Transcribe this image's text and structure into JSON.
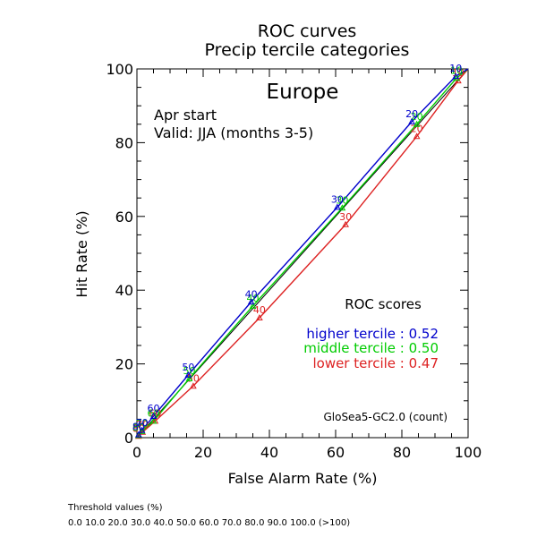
{
  "chart_data": {
    "type": "line",
    "title": "ROC curves",
    "subtitle": "Precip tercile categories",
    "region": "Europe",
    "start_label": "Apr start",
    "valid_label": "Valid: JJA (months 3-5)",
    "xlabel": "False Alarm Rate (%)",
    "ylabel": "Hit Rate (%)",
    "xlim": [
      0,
      100
    ],
    "ylim": [
      0,
      100
    ],
    "x_ticks": [
      "0",
      "20",
      "40",
      "60",
      "80",
      "100"
    ],
    "y_ticks": [
      "0",
      "20",
      "40",
      "60",
      "80",
      "100"
    ],
    "legend_title": "ROC scores",
    "model_label": "GloSea5-GC2.0 (count)",
    "threshold_title": "Threshold values (%)",
    "threshold_values": "0.0 10.0 20.0 30.0 40.0 50.0 60.0 70.0 80.0 90.0 100.0 (>100)",
    "series": [
      {
        "name": "higher tercile",
        "score_text": "higher tercile : 0.52",
        "color": "#0000cc",
        "points": [
          {
            "x": 100,
            "y": 100,
            "label": ""
          },
          {
            "x": 96.3,
            "y": 98.0,
            "label": "10"
          },
          {
            "x": 83.0,
            "y": 85.7,
            "label": "20"
          },
          {
            "x": 60.5,
            "y": 62.5,
            "label": "30"
          },
          {
            "x": 34.5,
            "y": 36.8,
            "label": "40"
          },
          {
            "x": 15.5,
            "y": 17.0,
            "label": "50"
          },
          {
            "x": 5.0,
            "y": 5.8,
            "label": "60"
          },
          {
            "x": 1.5,
            "y": 2.0,
            "label": "70"
          },
          {
            "x": 0.5,
            "y": 0.8,
            "label": "80"
          },
          {
            "x": 0,
            "y": 0,
            "label": ""
          }
        ]
      },
      {
        "name": "middle tercile",
        "score_text": "middle tercile : 0.50",
        "color": "#00cc00",
        "points": [
          {
            "x": 100,
            "y": 100,
            "label": ""
          },
          {
            "x": 96.5,
            "y": 97.5,
            "label": "10"
          },
          {
            "x": 84.5,
            "y": 85.0,
            "label": "20"
          },
          {
            "x": 62.0,
            "y": 62.3,
            "label": "30"
          },
          {
            "x": 35.0,
            "y": 35.7,
            "label": "40"
          },
          {
            "x": 15.8,
            "y": 16.0,
            "label": "50"
          },
          {
            "x": 5.0,
            "y": 4.5,
            "label": "60"
          },
          {
            "x": 1.5,
            "y": 1.7,
            "label": "70"
          },
          {
            "x": 0.5,
            "y": 0.6,
            "label": "80"
          },
          {
            "x": 0,
            "y": 0,
            "label": ""
          }
        ]
      },
      {
        "name": "lower tercile",
        "score_text": "lower tercile : 0.47",
        "color": "#dd2222",
        "points": [
          {
            "x": 100,
            "y": 100,
            "label": ""
          },
          {
            "x": 97.0,
            "y": 96.8,
            "label": "10"
          },
          {
            "x": 84.5,
            "y": 81.7,
            "label": "20"
          },
          {
            "x": 63.0,
            "y": 57.8,
            "label": "30"
          },
          {
            "x": 37.0,
            "y": 32.5,
            "label": "40"
          },
          {
            "x": 17.0,
            "y": 14.0,
            "label": "50"
          },
          {
            "x": 5.5,
            "y": 4.5,
            "label": "60"
          },
          {
            "x": 1.7,
            "y": 1.5,
            "label": "70"
          },
          {
            "x": 0.5,
            "y": 0.4,
            "label": "80"
          },
          {
            "x": 0,
            "y": 0,
            "label": ""
          }
        ]
      }
    ]
  }
}
